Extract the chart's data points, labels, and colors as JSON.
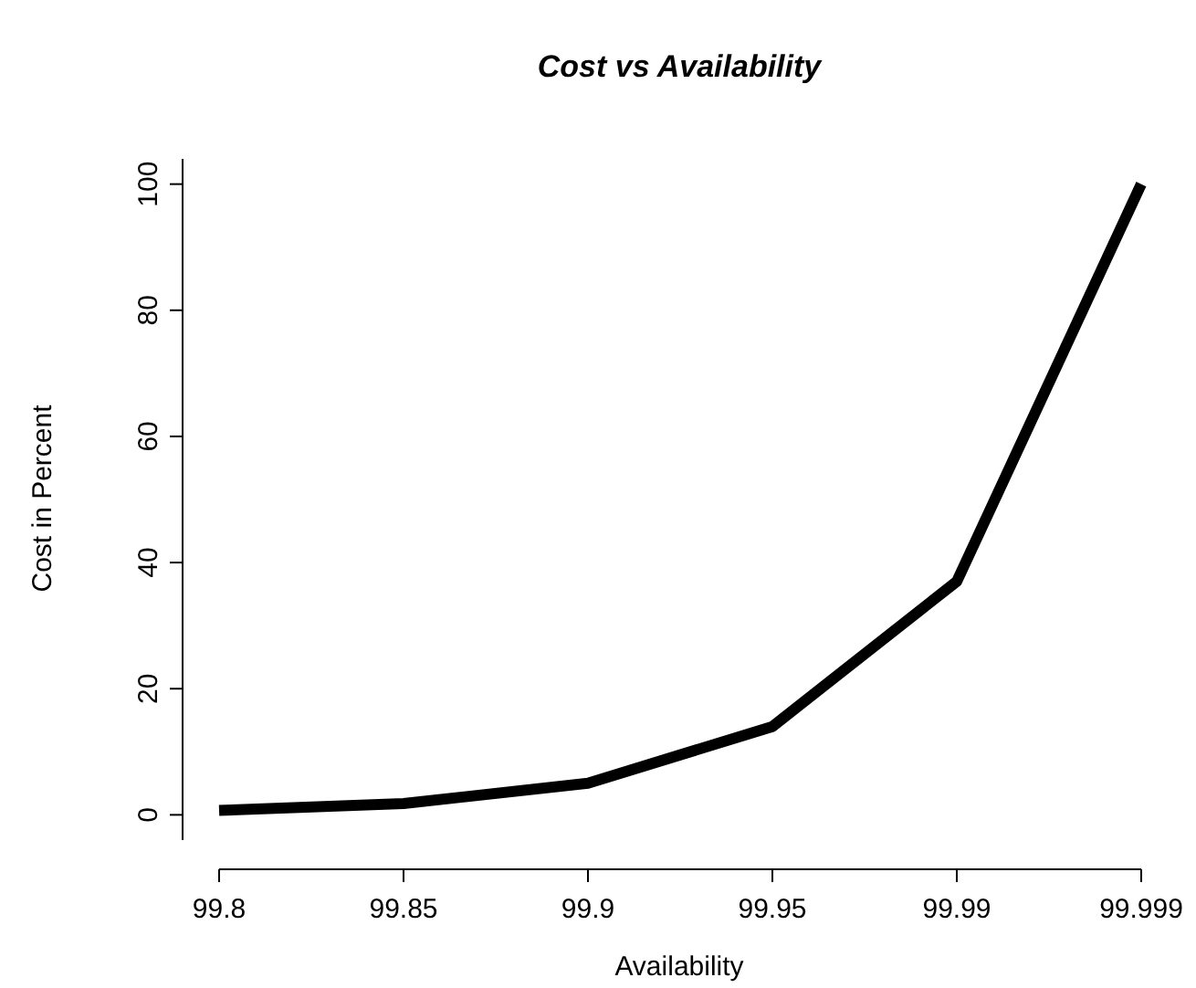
{
  "chart_data": {
    "type": "line",
    "title": "Cost vs Availability",
    "xlabel": "Availability",
    "ylabel": "Cost in Percent",
    "categories": [
      "99.8",
      "99.85",
      "99.9",
      "99.95",
      "99.99",
      "99.999"
    ],
    "series": [
      {
        "color": "#000000",
        "values": [
          0.7,
          1.8,
          5,
          14,
          37,
          100
        ]
      }
    ],
    "ylim": [
      -4,
      104
    ],
    "yticks": [
      0,
      20,
      40,
      60,
      80,
      100
    ],
    "marker": "none",
    "line_style": "solid"
  }
}
